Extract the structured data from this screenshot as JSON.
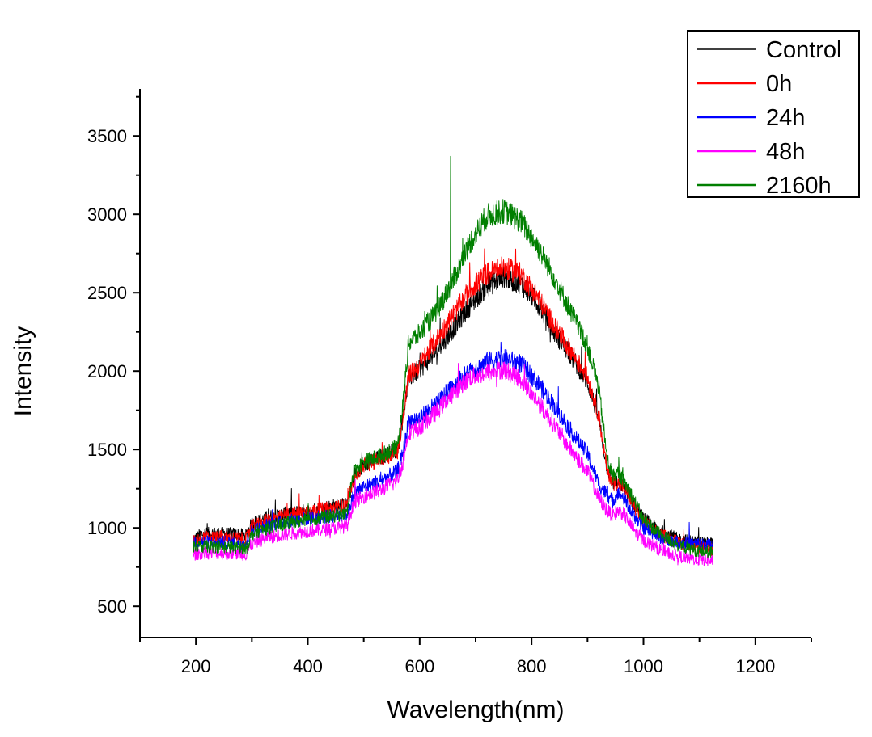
{
  "chart_data": {
    "type": "line",
    "title": "",
    "xlabel": "Wavelength(nm)",
    "ylabel": "Intensity",
    "xlim": [
      100,
      1300
    ],
    "ylim": [
      300,
      3800
    ],
    "x_ticks": [
      200,
      400,
      600,
      800,
      1000,
      1200
    ],
    "y_ticks": [
      500,
      1000,
      1500,
      2000,
      2500,
      3000,
      3500
    ],
    "grid": false,
    "legend_position": "top-right",
    "x": [
      195,
      210,
      240,
      270,
      290,
      300,
      330,
      360,
      400,
      430,
      470,
      478,
      485,
      500,
      530,
      560,
      570,
      580,
      600,
      630,
      660,
      690,
      720,
      750,
      780,
      810,
      840,
      870,
      900,
      920,
      935,
      945,
      955,
      965,
      980,
      1000,
      1030,
      1060,
      1090,
      1125
    ],
    "series": [
      {
        "name": "Control",
        "color": "#000000",
        "values": [
          920,
          960,
          965,
          960,
          950,
          1030,
          1070,
          1090,
          1110,
          1130,
          1150,
          1260,
          1330,
          1400,
          1450,
          1500,
          1700,
          1950,
          2010,
          2130,
          2270,
          2420,
          2540,
          2600,
          2560,
          2440,
          2250,
          2100,
          1930,
          1700,
          1380,
          1290,
          1280,
          1270,
          1170,
          1060,
          980,
          930,
          910,
          900
        ],
        "spike": null
      },
      {
        "name": "0h",
        "color": "#ff0000",
        "values": [
          910,
          940,
          940,
          935,
          930,
          1010,
          1050,
          1080,
          1100,
          1120,
          1140,
          1270,
          1330,
          1400,
          1440,
          1480,
          1680,
          1970,
          2040,
          2200,
          2360,
          2520,
          2620,
          2660,
          2620,
          2480,
          2290,
          2130,
          1960,
          1720,
          1370,
          1290,
          1280,
          1260,
          1160,
          1040,
          960,
          910,
          880,
          860
        ],
        "spike": null
      },
      {
        "name": "24h",
        "color": "#0000ff",
        "values": [
          910,
          910,
          910,
          905,
          900,
          980,
          1020,
          1040,
          1060,
          1070,
          1090,
          1170,
          1230,
          1260,
          1300,
          1360,
          1470,
          1680,
          1700,
          1790,
          1910,
          2000,
          2060,
          2080,
          2050,
          1930,
          1780,
          1620,
          1470,
          1280,
          1210,
          1170,
          1230,
          1190,
          1090,
          1000,
          940,
          910,
          900,
          890
        ],
        "spike": null
      },
      {
        "name": "48h",
        "color": "#ff00ff",
        "values": [
          830,
          840,
          840,
          835,
          830,
          900,
          940,
          960,
          980,
          990,
          1010,
          1110,
          1170,
          1200,
          1240,
          1300,
          1420,
          1610,
          1640,
          1740,
          1860,
          1960,
          1990,
          2010,
          1950,
          1810,
          1660,
          1500,
          1360,
          1190,
          1110,
          1080,
          1110,
          1090,
          1000,
          920,
          860,
          820,
          800,
          790
        ],
        "spike": null
      },
      {
        "name": "2160h",
        "color": "#007f00",
        "values": [
          880,
          880,
          880,
          875,
          870,
          960,
          1000,
          1030,
          1050,
          1070,
          1090,
          1290,
          1370,
          1420,
          1460,
          1520,
          1780,
          2180,
          2240,
          2380,
          2580,
          2820,
          2990,
          3020,
          2960,
          2800,
          2600,
          2380,
          2160,
          1900,
          1440,
          1330,
          1350,
          1300,
          1200,
          1050,
          960,
          890,
          860,
          840
        ],
        "spike": [
          655,
          3370
        ]
      }
    ]
  }
}
